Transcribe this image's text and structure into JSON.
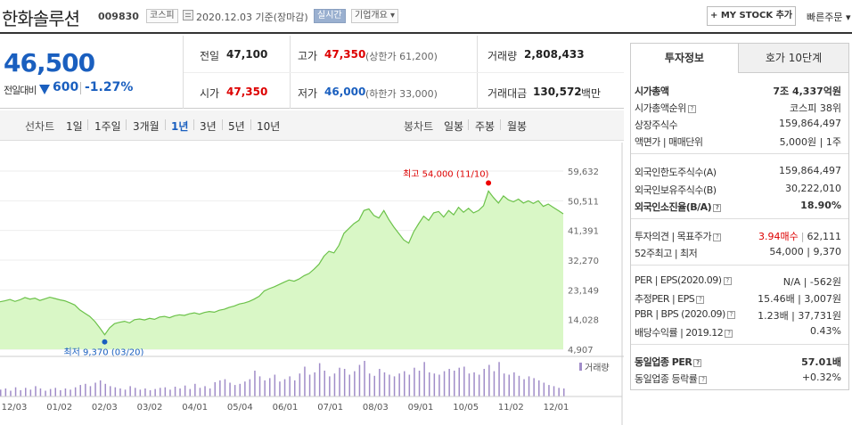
{
  "header": {
    "stock_name": "한화솔루션",
    "stock_code": "009830",
    "market": "코스피",
    "date_text": "2020.12.03 기준(장마감)",
    "realtime": "실시간",
    "corp_overview": "기업개요 ▾",
    "mystock_label": "+ MY STOCK 추가",
    "quick_order": "빠른주문 ▾"
  },
  "price": {
    "current": "46,500",
    "prev_label": "전일대비",
    "change": "600",
    "change_pct": "-1.27%"
  },
  "summary": {
    "prev_close_label": "전일",
    "prev_close": "47,100",
    "open_label": "시가",
    "open": "47,350",
    "high_label": "고가",
    "high": "47,350",
    "upper_limit": "(상한가 61,200)",
    "low_label": "저가",
    "low": "46,000",
    "lower_limit": "(하한가 33,000)",
    "volume_label": "거래량",
    "volume": "2,808,433",
    "amount_label": "거래대금",
    "amount": "130,572",
    "amount_unit": "백만"
  },
  "tabs": {
    "line_chart": "선차트",
    "periods": [
      "1일",
      "1주일",
      "3개월",
      "1년",
      "3년",
      "5년",
      "10년"
    ],
    "selected": "1년",
    "candle_chart": "봉차트",
    "candles": [
      "일봉",
      "주봉",
      "월봉"
    ]
  },
  "chart_data": {
    "type": "area",
    "y_ticks": [
      "59,632",
      "50,511",
      "41,391",
      "32,270",
      "23,149",
      "14,028",
      "4,907"
    ],
    "ylim": [
      4907,
      59632
    ],
    "x_ticks": [
      "12/03",
      "01/02",
      "02/03",
      "03/02",
      "04/01",
      "05/04",
      "06/01",
      "07/01",
      "08/03",
      "09/01",
      "10/05",
      "11/02",
      "12/01"
    ],
    "high_annotation": "최고 54,000 (11/10)",
    "low_annotation": "최저 9,370 (03/20)",
    "volume_label": "거래량",
    "series": [
      {
        "values": [
          19500,
          19800,
          20200,
          19600,
          20100,
          20800,
          20300,
          20600,
          19900,
          20400,
          20900,
          20500,
          20100,
          19800,
          19200,
          18500,
          17000,
          16000,
          15000,
          13500,
          11500,
          9370,
          11500,
          12800,
          13200,
          13500,
          13000,
          14000,
          14200,
          13900,
          14400,
          14100,
          14800,
          15000,
          14600,
          15200,
          15500,
          15300,
          15800,
          16100,
          15700,
          16200,
          16500,
          16300,
          16900,
          17200,
          17800,
          18200,
          18800,
          19100,
          19600,
          20300,
          21200,
          22800,
          23500,
          24100,
          24800,
          25500,
          26200,
          25800,
          26500,
          27500,
          28200,
          29500,
          31000,
          33500,
          35000,
          34500,
          36800,
          40500,
          42000,
          43500,
          44500,
          47500,
          48000,
          46000,
          45200,
          47500,
          44800,
          42500,
          40500,
          38500,
          37500,
          41000,
          43500,
          45800,
          44500,
          46800,
          47200,
          45500,
          47500,
          46200,
          48500,
          47000,
          48200,
          46800,
          47500,
          49000,
          53500,
          51500,
          49800,
          52000,
          50800,
          50200,
          51000,
          49800,
          50500,
          49700,
          50500,
          48800,
          49500,
          48500,
          47500,
          46500
        ]
      }
    ],
    "volume": [
      12,
      14,
      10,
      16,
      11,
      15,
      12,
      18,
      14,
      10,
      13,
      15,
      11,
      14,
      12,
      16,
      20,
      22,
      18,
      24,
      28,
      22,
      18,
      16,
      14,
      12,
      18,
      15,
      12,
      14,
      11,
      13,
      15,
      16,
      12,
      17,
      14,
      19,
      13,
      22,
      15,
      18,
      14,
      25,
      28,
      30,
      24,
      20,
      22,
      26,
      30,
      45,
      35,
      28,
      32,
      38,
      26,
      30,
      35,
      28,
      40,
      52,
      38,
      42,
      58,
      45,
      35,
      40,
      50,
      48,
      38,
      44,
      55,
      62,
      40,
      36,
      48,
      42,
      38,
      35,
      40,
      44,
      38,
      50,
      45,
      60,
      42,
      40,
      38,
      44,
      48,
      45,
      50,
      52,
      40,
      42,
      38,
      48,
      55,
      44,
      60,
      40,
      38,
      42,
      36,
      30,
      35,
      32,
      28,
      24,
      20,
      18,
      15,
      14
    ]
  },
  "right_panel": {
    "tab_invest": "투자정보",
    "tab_hoga": "호가 10단계",
    "rows": [
      {
        "label": "시가총액",
        "value": "7조 4,337억원",
        "bold": true
      },
      {
        "label": "시가총액순위",
        "value": "코스피 38위"
      },
      {
        "label": "상장주식수",
        "value": "159,864,497"
      },
      {
        "label": "액면가 | 매매단위",
        "value": "5,000원 | 1주"
      },
      {
        "label": "외국인한도주식수(A)",
        "value": "159,864,497"
      },
      {
        "label": "외국인보유주식수(B)",
        "value": "30,222,010"
      },
      {
        "label": "외국인소진율(B/A)",
        "value": "18.90%",
        "bold": true
      },
      {
        "label": "투자의견 | 목표주가",
        "value_a": "3.94매수",
        "value_b": "62,111"
      },
      {
        "label": "52주최고 | 최저",
        "value": "54,000 | 9,370"
      },
      {
        "label": "PER | EPS(2020.09)",
        "value": "N/A | -562원"
      },
      {
        "label": "추정PER | EPS",
        "value": "15.46배 | 3,007원"
      },
      {
        "label": "PBR | BPS (2020.09)",
        "value": "1.23배 | 37,731원"
      },
      {
        "label": "배당수익률 | 2019.12",
        "value": "0.43%"
      },
      {
        "label": "동일업종 PER",
        "value": "57.01배",
        "bold": true
      },
      {
        "label": "동일업종 등락률",
        "value": "+0.32%"
      }
    ]
  },
  "colors": {
    "up": "#dd0000",
    "down": "#1a5fbf",
    "area_fill": "#d6f5c4",
    "area_line": "#6cc24a"
  }
}
